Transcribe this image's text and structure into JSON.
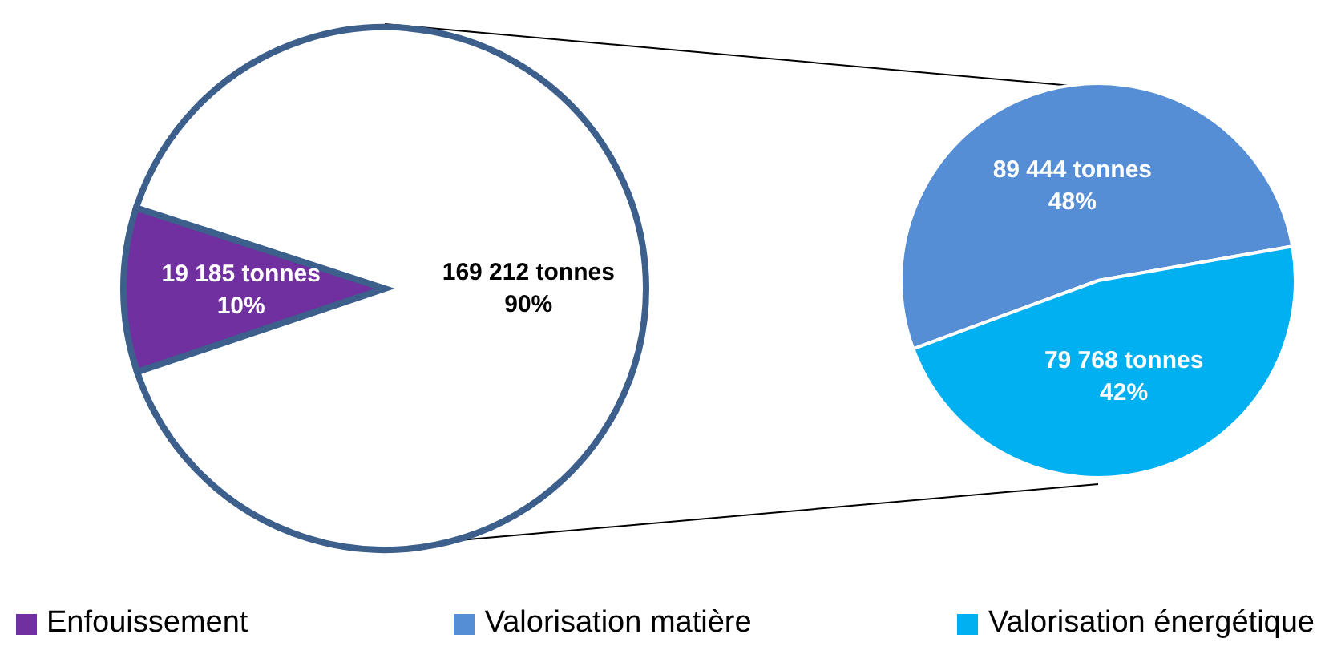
{
  "chart_data": [
    {
      "type": "pie",
      "categories": [
        "Enfouissement",
        null
      ],
      "values": [
        19185,
        169212
      ],
      "colors": [
        "#7030a0",
        "#ffffff"
      ],
      "value_labels": [
        "19 185 tonnes\n10%",
        "169 212 tonnes\n90%"
      ],
      "legend": "bottom"
    },
    {
      "type": "pie",
      "categories": [
        "Valorisation matière",
        "Valorisation énergétique"
      ],
      "values": [
        89444,
        79768
      ],
      "colors": [
        "#558ed5",
        "#00b0f0"
      ],
      "value_labels": [
        "89 444 tonnes\n48%",
        "79 768 tonnes\n42%"
      ],
      "legend": "bottom"
    }
  ]
}
